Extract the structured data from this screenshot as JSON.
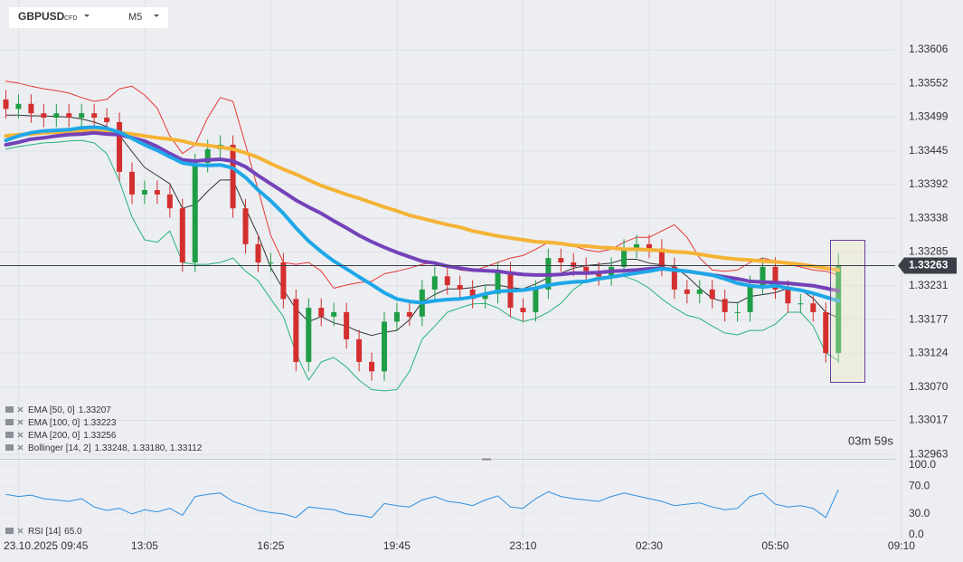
{
  "chart_data": {
    "type": "candlestick",
    "symbol": "GBPUSD",
    "instrument": "CFD",
    "timeframe": "M5",
    "categories": [
      null,
      "23.10.2025 09:45",
      null,
      null,
      null,
      null,
      null,
      null,
      null,
      null,
      null,
      "13:05",
      null,
      null,
      null,
      null,
      null,
      null,
      null,
      null,
      null,
      "16:25",
      null,
      null,
      null,
      null,
      null,
      null,
      null,
      null,
      null,
      "19:45",
      null,
      null,
      null,
      null,
      null,
      null,
      null,
      null,
      null,
      "23:10",
      null,
      null,
      null,
      null,
      null,
      null,
      null,
      null,
      null,
      "02:30",
      null,
      null,
      null,
      null,
      null,
      null,
      null,
      null,
      null,
      "05:50",
      null,
      null,
      null,
      null,
      null,
      null,
      null,
      null,
      null,
      "09:10"
    ],
    "open": [
      1.33527,
      1.33512,
      1.3352,
      1.33505,
      1.33498,
      1.33505,
      1.33498,
      1.33505,
      1.33498,
      1.33491,
      1.33412,
      1.33376,
      1.33383,
      1.33376,
      1.33354,
      1.33268,
      1.33426,
      1.33448,
      1.33455,
      1.33354,
      1.33297,
      1.33268,
      1.33268,
      1.3321,
      1.3311,
      1.33196,
      1.33182,
      1.33189,
      1.33146,
      1.3311,
      1.33095,
      1.33174,
      1.33189,
      1.33182,
      1.33225,
      1.33246,
      1.33232,
      1.33225,
      1.3321,
      1.33218,
      1.33254,
      1.33196,
      1.33189,
      1.33225,
      1.33275,
      1.33268,
      1.33261,
      1.33254,
      1.33246,
      1.33261,
      1.3329,
      1.33297,
      1.3329,
      1.33261,
      1.33225,
      1.33218,
      1.33225,
      1.3321,
      1.33189,
      1.33189,
      1.33232,
      1.33261,
      1.33225,
      1.33203,
      1.33203,
      1.33189,
      1.33124,
      null,
      null,
      null,
      null,
      null
    ],
    "high": [
      1.33542,
      1.33535,
      1.33535,
      1.3352,
      1.3352,
      1.3352,
      1.3352,
      1.3352,
      1.33513,
      1.33506,
      1.33427,
      1.33398,
      1.33398,
      1.33391,
      1.33369,
      1.33441,
      1.33463,
      1.3347,
      1.3347,
      1.33369,
      1.33312,
      1.33283,
      1.33283,
      1.33225,
      1.33211,
      1.33211,
      1.33204,
      1.33204,
      1.33161,
      1.33125,
      1.33189,
      1.33204,
      1.33204,
      1.3324,
      1.33261,
      1.33261,
      1.33247,
      1.3324,
      1.33233,
      1.33269,
      1.33269,
      1.33211,
      1.3324,
      1.3329,
      1.3329,
      1.33283,
      1.33276,
      1.33269,
      1.33276,
      1.33305,
      1.33312,
      1.33312,
      1.33305,
      1.33276,
      1.3324,
      1.3324,
      1.3324,
      1.33225,
      1.33204,
      1.33247,
      1.33276,
      1.33276,
      1.3324,
      1.33218,
      1.33218,
      1.33204,
      1.33282,
      null,
      null,
      null,
      null,
      null
    ],
    "low": [
      1.33497,
      1.33497,
      1.3349,
      1.33483,
      1.33483,
      1.33483,
      1.33483,
      1.33483,
      1.33476,
      1.33397,
      1.33361,
      1.33361,
      1.33361,
      1.33339,
      1.33253,
      1.33253,
      1.33411,
      1.33433,
      1.33339,
      1.33282,
      1.33253,
      1.33253,
      1.33195,
      1.33095,
      1.33095,
      1.33167,
      1.33167,
      1.33131,
      1.33095,
      1.3308,
      1.3308,
      1.33159,
      1.33167,
      1.33167,
      1.3321,
      1.33217,
      1.3321,
      1.33195,
      1.33195,
      1.33203,
      1.33181,
      1.33174,
      1.33174,
      1.3321,
      1.33253,
      1.33246,
      1.33239,
      1.33231,
      1.33231,
      1.33246,
      1.33275,
      1.33275,
      1.33246,
      1.3321,
      1.33203,
      1.33203,
      1.33195,
      1.33174,
      1.33174,
      1.33174,
      1.33217,
      1.3321,
      1.33188,
      1.33188,
      1.33174,
      1.33109,
      1.33109,
      null,
      null,
      null,
      null,
      null
    ],
    "close": [
      1.33512,
      1.3352,
      1.33505,
      1.33498,
      1.33505,
      1.33498,
      1.33505,
      1.33498,
      1.33491,
      1.33412,
      1.33376,
      1.33383,
      1.33376,
      1.33354,
      1.33268,
      1.33426,
      1.33448,
      1.33455,
      1.33354,
      1.33297,
      1.33268,
      1.33268,
      1.3321,
      1.3311,
      1.33196,
      1.33182,
      1.33189,
      1.33146,
      1.3311,
      1.33095,
      1.33174,
      1.33189,
      1.33182,
      1.33225,
      1.33246,
      1.33232,
      1.33225,
      1.3321,
      1.33218,
      1.33254,
      1.33196,
      1.33189,
      1.33225,
      1.33275,
      1.33268,
      1.33261,
      1.33254,
      1.33246,
      1.33261,
      1.3329,
      1.33297,
      1.3329,
      1.33261,
      1.33225,
      1.33218,
      1.33225,
      1.3321,
      1.33189,
      1.33189,
      1.33232,
      1.33261,
      1.33225,
      1.33203,
      1.33203,
      1.33189,
      1.33124,
      1.33263,
      null,
      null,
      null,
      null,
      null
    ],
    "colors": {
      "up": "#1e9e45",
      "down": "#d32f2f"
    },
    "ylim": [
      1.32956,
      1.33685
    ],
    "yticks": [
      1.33606,
      1.33552,
      1.33499,
      1.33445,
      1.33392,
      1.33338,
      1.33285,
      1.33231,
      1.33177,
      1.33124,
      {
        "value": 1.3307,
        "label": "1.33070"
      },
      1.33017,
      1.32963
    ],
    "grid": true,
    "series": [
      {
        "color": "#e53935",
        "width": 1,
        "values": [
          1.33556,
          1.33553,
          1.33548,
          1.33544,
          1.33541,
          1.33537,
          1.3353,
          1.33524,
          1.33527,
          1.33544,
          1.33548,
          1.33534,
          1.33513,
          1.33469,
          1.33441,
          1.33455,
          1.33498,
          1.3353,
          1.33524,
          1.33455,
          1.33383,
          1.33311,
          1.33268,
          1.33265,
          1.33268,
          1.33254,
          1.33227,
          1.33232,
          1.33236,
          1.33238,
          1.3325,
          1.33254,
          1.33259,
          1.33265,
          1.33268,
          1.33264,
          1.33256,
          1.33254,
          1.33261,
          1.33268,
          1.33275,
          1.33279,
          1.33289,
          1.333,
          1.333,
          1.33294,
          1.33288,
          1.33285,
          1.33289,
          1.333,
          1.33308,
          1.33308,
          1.33318,
          1.33328,
          1.33308,
          1.33275,
          1.33256,
          1.33254,
          1.33256,
          1.33268,
          1.33275,
          1.3327,
          1.33265,
          1.33261,
          1.33256,
          1.33254,
          1.33248,
          null,
          null,
          null,
          null,
          null
        ]
      },
      {
        "color": "#333333",
        "width": 1,
        "values": [
          1.33502,
          1.33502,
          1.33501,
          1.33501,
          1.335,
          1.33499,
          1.33496,
          1.33491,
          1.33484,
          1.3347,
          1.33444,
          1.33419,
          1.33406,
          1.33393,
          1.33354,
          1.3336,
          1.33381,
          1.33399,
          1.33399,
          1.33354,
          1.33311,
          1.3326,
          1.33225,
          1.33194,
          1.33174,
          1.33182,
          1.33172,
          1.33167,
          1.33158,
          1.33152,
          1.33157,
          1.3316,
          1.33177,
          1.33205,
          1.33217,
          1.33226,
          1.33226,
          1.33228,
          1.33232,
          1.33232,
          1.33228,
          1.33226,
          1.33234,
          1.33244,
          1.33251,
          1.33259,
          1.33263,
          1.33265,
          1.33267,
          1.33273,
          1.33273,
          1.33267,
          1.33264,
          1.33262,
          1.33246,
          1.33227,
          1.33211,
          1.33205,
          1.33204,
          1.33214,
          1.33217,
          1.3322,
          1.33227,
          1.33225,
          1.33211,
          1.33189,
          1.3318,
          null,
          null,
          null,
          null,
          null
        ]
      },
      {
        "color": "#26b37a",
        "width": 1,
        "values": [
          1.33448,
          1.33452,
          1.33455,
          1.33458,
          1.33459,
          1.33461,
          1.33462,
          1.33458,
          1.33441,
          1.33397,
          1.3334,
          1.33304,
          1.333,
          1.33318,
          1.33268,
          1.33265,
          1.33265,
          1.33268,
          1.33275,
          1.33254,
          1.33239,
          1.3321,
          1.33182,
          1.33124,
          1.33081,
          1.3311,
          1.33117,
          1.33102,
          1.33081,
          1.33066,
          1.33064,
          1.33066,
          1.33095,
          1.33146,
          1.33167,
          1.33189,
          1.33196,
          1.33202,
          1.33203,
          1.33196,
          1.33182,
          1.33174,
          1.33179,
          1.33189,
          1.33203,
          1.33225,
          1.33239,
          1.33245,
          1.33246,
          1.33246,
          1.33239,
          1.33227,
          1.3321,
          1.33196,
          1.33184,
          1.33179,
          1.33167,
          1.33156,
          1.33153,
          1.3316,
          1.3316,
          1.3317,
          1.33189,
          1.33189,
          1.33167,
          1.33124,
          1.33112,
          null,
          null,
          null,
          null,
          null
        ]
      },
      {
        "color": "#f5b335",
        "width": 4,
        "values": [
          1.33469,
          1.33471,
          1.33472,
          1.33474,
          1.33475,
          1.33475,
          1.33477,
          1.33477,
          1.33475,
          1.33474,
          1.33472,
          1.33469,
          1.33466,
          1.33464,
          1.33461,
          1.33456,
          1.33454,
          1.33451,
          1.33448,
          1.33442,
          1.33435,
          1.33425,
          1.33416,
          1.33408,
          1.33399,
          1.3339,
          1.33383,
          1.33376,
          1.3337,
          1.33363,
          1.33356,
          1.3335,
          1.33343,
          1.33338,
          1.33333,
          1.33328,
          1.33324,
          1.33318,
          1.33314,
          1.3331,
          1.33307,
          1.33304,
          1.33301,
          1.333,
          1.33298,
          1.33295,
          1.33294,
          1.33292,
          1.33291,
          1.33289,
          1.33289,
          1.33288,
          1.33287,
          1.33285,
          1.33284,
          1.33281,
          1.33278,
          1.33275,
          1.33273,
          1.33272,
          1.3327,
          1.33269,
          1.33267,
          1.33265,
          1.33262,
          1.33259,
          1.33256,
          null,
          null,
          null,
          null,
          null
        ]
      },
      {
        "color": "#7442b8",
        "width": 4,
        "values": [
          1.33455,
          1.33459,
          1.33464,
          1.33466,
          1.33469,
          1.33471,
          1.33472,
          1.33474,
          1.33472,
          1.33471,
          1.33466,
          1.33461,
          1.33452,
          1.33441,
          1.33431,
          1.33429,
          1.33431,
          1.33432,
          1.33429,
          1.3342,
          1.33406,
          1.33393,
          1.3338,
          1.33367,
          1.33356,
          1.33346,
          1.33334,
          1.33323,
          1.33311,
          1.33301,
          1.33292,
          1.33284,
          1.33277,
          1.3327,
          1.33267,
          1.33262,
          1.33259,
          1.33256,
          1.33255,
          1.33254,
          1.33251,
          1.33249,
          1.33248,
          1.33248,
          1.33249,
          1.33251,
          1.33251,
          1.33252,
          1.33254,
          1.33255,
          1.33256,
          1.33258,
          1.33259,
          1.33256,
          1.33254,
          1.33251,
          1.33248,
          1.33245,
          1.33242,
          1.33238,
          1.33237,
          1.33236,
          1.33235,
          1.33233,
          1.33231,
          1.33227,
          1.33223,
          null,
          null,
          null,
          null,
          null
        ]
      },
      {
        "color": "#1ea7e8",
        "width": 4,
        "values": [
          1.33462,
          1.33469,
          1.33474,
          1.33477,
          1.33478,
          1.33479,
          1.33482,
          1.33483,
          1.33481,
          1.33475,
          1.33465,
          1.33455,
          1.33446,
          1.33436,
          1.33426,
          1.33423,
          1.33422,
          1.33423,
          1.33418,
          1.33403,
          1.33383,
          1.33366,
          1.33346,
          1.33323,
          1.33302,
          1.33285,
          1.3327,
          1.33258,
          1.33245,
          1.33233,
          1.3322,
          1.3321,
          1.33206,
          1.33204,
          1.33207,
          1.33209,
          1.3321,
          1.33213,
          1.33218,
          1.33222,
          1.33223,
          1.33224,
          1.33227,
          1.33232,
          1.33235,
          1.33237,
          1.33238,
          1.33242,
          1.33245,
          1.33248,
          1.33251,
          1.33254,
          1.33258,
          1.33256,
          1.33254,
          1.33251,
          1.33248,
          1.33242,
          1.33235,
          1.33231,
          1.33229,
          1.33231,
          1.33227,
          1.33224,
          1.33219,
          1.33213,
          1.33207,
          null,
          null,
          null,
          null,
          null
        ]
      }
    ],
    "indicators": [
      {
        "label": "EMA [50,  0]",
        "value_label": "1.33207"
      },
      {
        "label": "EMA [100,  0]",
        "value_label": "1.33223"
      },
      {
        "label": "EMA [200,  0]",
        "value_label": "1.33256"
      },
      {
        "label": "Bollinger  [14, 2]",
        "value_label": "1.33248,  1.33180,  1.33112"
      }
    ],
    "last_price": {
      "value": 1.33263,
      "label": "1.33263"
    },
    "timer": "03m 59s",
    "rsi": {
      "label": "RSI [14]",
      "value_label": "65.0",
      "color": "#2d8fe0",
      "ylim": [
        0,
        100
      ],
      "yticks": [
        {
          "value": 100,
          "label": "100.0"
        },
        {
          "value": 70,
          "label": "70.0"
        },
        {
          "value": 30,
          "label": "30.0"
        },
        {
          "value": 0,
          "label": "0.0"
        }
      ],
      "values": [
        58,
        55,
        57,
        52,
        50,
        48,
        52,
        40,
        35,
        38,
        30,
        36,
        33,
        38,
        28,
        55,
        58,
        60,
        48,
        42,
        35,
        32,
        30,
        25,
        40,
        38,
        36,
        30,
        28,
        25,
        45,
        42,
        40,
        50,
        55,
        48,
        46,
        42,
        50,
        56,
        40,
        38,
        52,
        62,
        55,
        52,
        50,
        48,
        55,
        60,
        56,
        52,
        48,
        42,
        44,
        46,
        40,
        36,
        38,
        55,
        60,
        44,
        40,
        42,
        38,
        25,
        65,
        null,
        null,
        null,
        null,
        null
      ]
    }
  }
}
